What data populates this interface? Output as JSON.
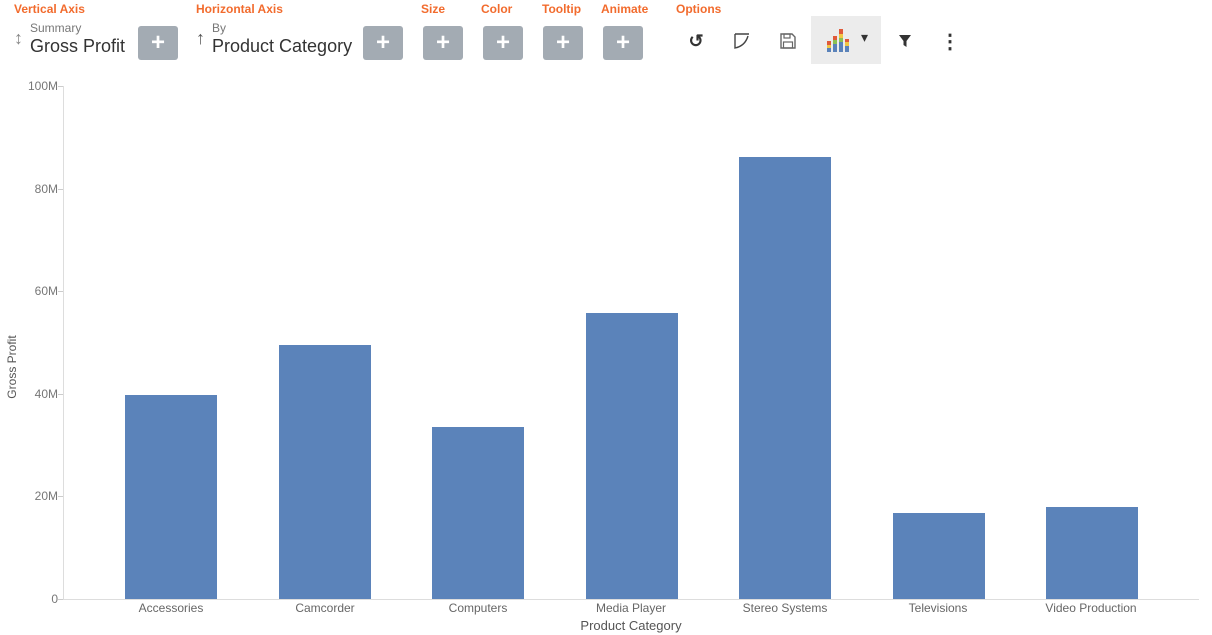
{
  "toolbar": {
    "sections": {
      "vertical_axis": "Vertical Axis",
      "horizontal_axis": "Horizontal Axis",
      "size": "Size",
      "color": "Color",
      "tooltip": "Tooltip",
      "animate": "Animate",
      "options": "Options"
    },
    "vertical": {
      "sub": "Summary",
      "main": "Gross Profit",
      "arrow": "↕"
    },
    "horizontal": {
      "sub": "By",
      "main": "Product Category",
      "arrow": "↑"
    },
    "plus": "+",
    "icons": {
      "undo": "↺",
      "more": "⋮",
      "caret": "▾"
    },
    "accent_color": "#f26b2d"
  },
  "chart_data": {
    "type": "bar",
    "title": "",
    "xlabel": "Product Category",
    "ylabel": "Gross Profit",
    "ylim": [
      0,
      100000000
    ],
    "yticks": [
      "0",
      "20M",
      "40M",
      "60M",
      "80M",
      "100M"
    ],
    "categories": [
      "Accessories",
      "Camcorder",
      "Computers",
      "Media Player",
      "Stereo Systems",
      "Televisions",
      "Video Production"
    ],
    "values": [
      39800000,
      49500000,
      33500000,
      55700000,
      86200000,
      16800000,
      17900000
    ],
    "color": "#5b83ba",
    "grid": false,
    "legend": "none"
  }
}
